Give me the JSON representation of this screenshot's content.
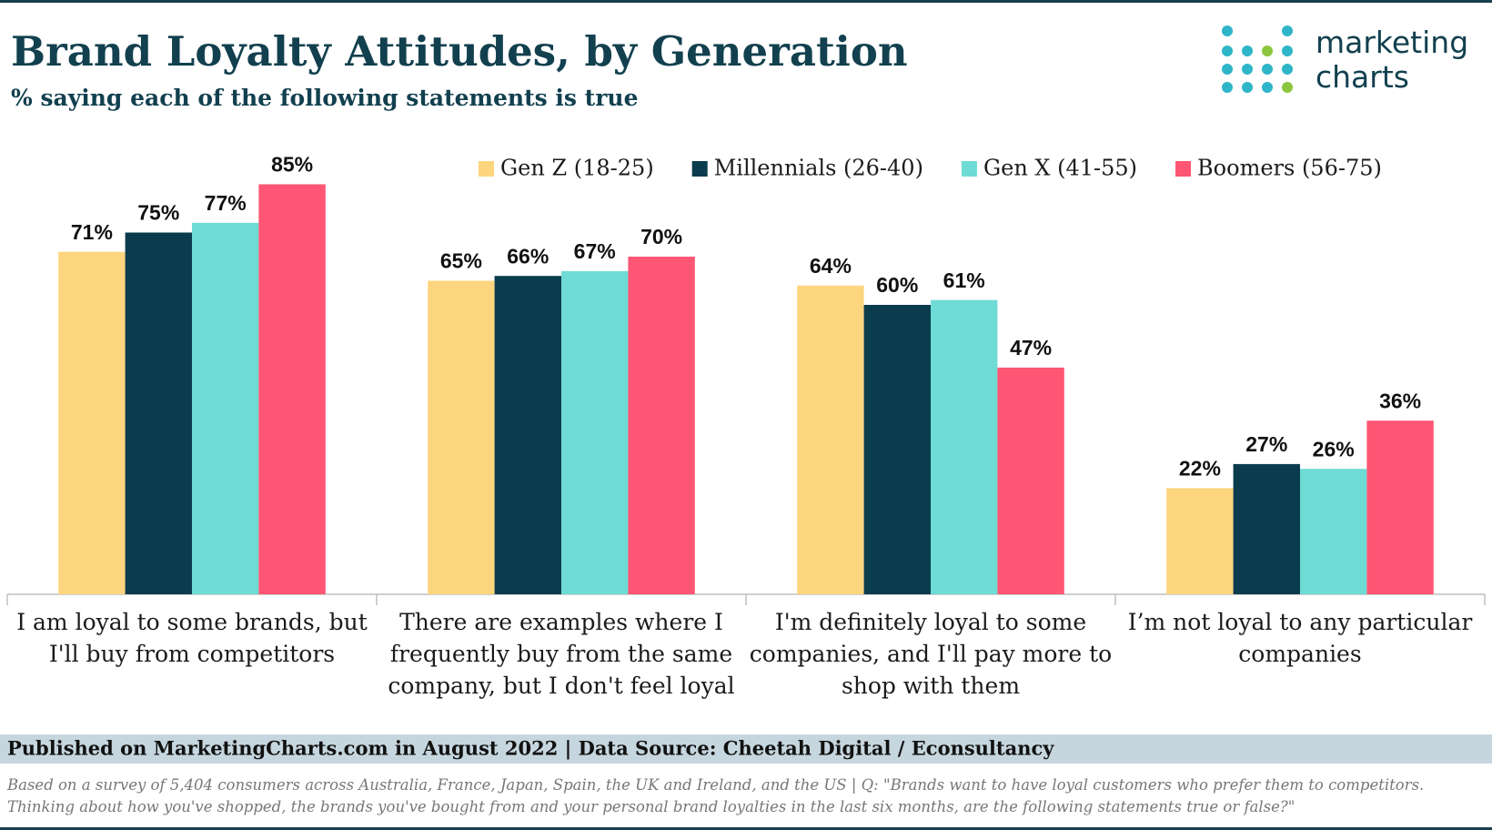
{
  "chart_data": {
    "type": "bar",
    "title": "Brand Loyalty Attitudes, by Generation",
    "subtitle": "% saying each of the following statements is true",
    "logo": [
      "marketing",
      "charts"
    ],
    "categories": [
      "I am loyal to some brands, but I'll buy from competitors",
      "There are examples where I frequently buy from the same company, but I don't feel loyal",
      "I'm definitely loyal to some companies, and I'll pay more to shop with them",
      "I’m not loyal to any particular companies"
    ],
    "series": [
      {
        "name": "Gen Z (18-25)",
        "color": "#fdd57e",
        "values": [
          71,
          65,
          64,
          22
        ],
        "value_labels": [
          "71%",
          "65%",
          "64%",
          "22%"
        ]
      },
      {
        "name": "Millennials (26-40)",
        "color": "#0b3c4d",
        "values": [
          75,
          66,
          60,
          27
        ],
        "value_labels": [
          "75%",
          "66%",
          "60%",
          "27%"
        ]
      },
      {
        "name": "Gen X (41-55)",
        "color": "#6edbd5",
        "values": [
          77,
          67,
          61,
          26
        ],
        "value_labels": [
          "77%",
          "67%",
          "61%",
          "26%"
        ]
      },
      {
        "name": "Boomers (56-75)",
        "color": "#fe5674",
        "values": [
          85,
          70,
          47,
          36
        ],
        "value_labels": [
          "85%",
          "70%",
          "47%",
          "36%"
        ]
      }
    ],
    "source": "Published on MarketingCharts.com in August 2022 | Data Source: Cheetah Digital / Econsultancy",
    "note": "Based on a survey of 5,404 consumers across Australia, France, Japan, Spain, the UK and Ireland, and the US | Q: \"Brands want to have loyal customers who prefer them to competitors. Thinking about how you've shopped, the brands you've bought from and your personal brand loyalties in the last six months, are the following statements true or false?\""
  }
}
